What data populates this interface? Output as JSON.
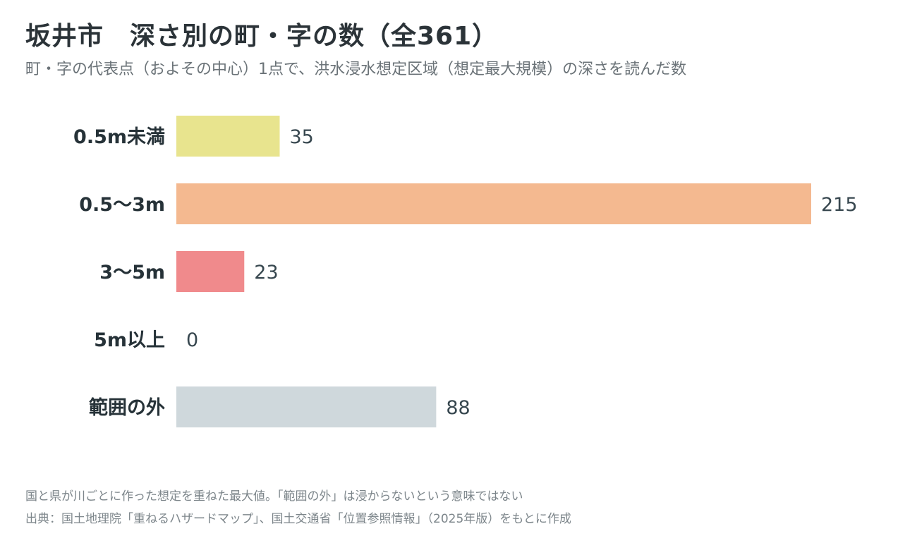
{
  "chart_data": {
    "type": "bar",
    "orientation": "horizontal",
    "title": "坂井市　深さ別の町・字の数（全361）",
    "subtitle": "町・字の代表点（およその中心）1点で、洪水浸水想定区域（想定最大規模）の深さを読んだ数",
    "categories": [
      "0.5m未満",
      "0.5〜3m",
      "3〜5m",
      "5m以上",
      "範囲の外"
    ],
    "values": [
      35,
      215,
      23,
      0,
      88
    ],
    "colors": [
      "#e8e48e",
      "#f4b990",
      "#f08a8c",
      "#e9a9a9",
      "#cfd8dc"
    ],
    "xlim": [
      0,
      215
    ],
    "grid": false,
    "legend": "none"
  },
  "notes": [
    "国と県が川ごとに作った想定を重ねた最大値。「範囲の外」は浸からないという意味ではない",
    "出典：国土地理院「重ねるハザードマップ」、国土交通省「位置参照情報」（2025年版）をもとに作成"
  ]
}
